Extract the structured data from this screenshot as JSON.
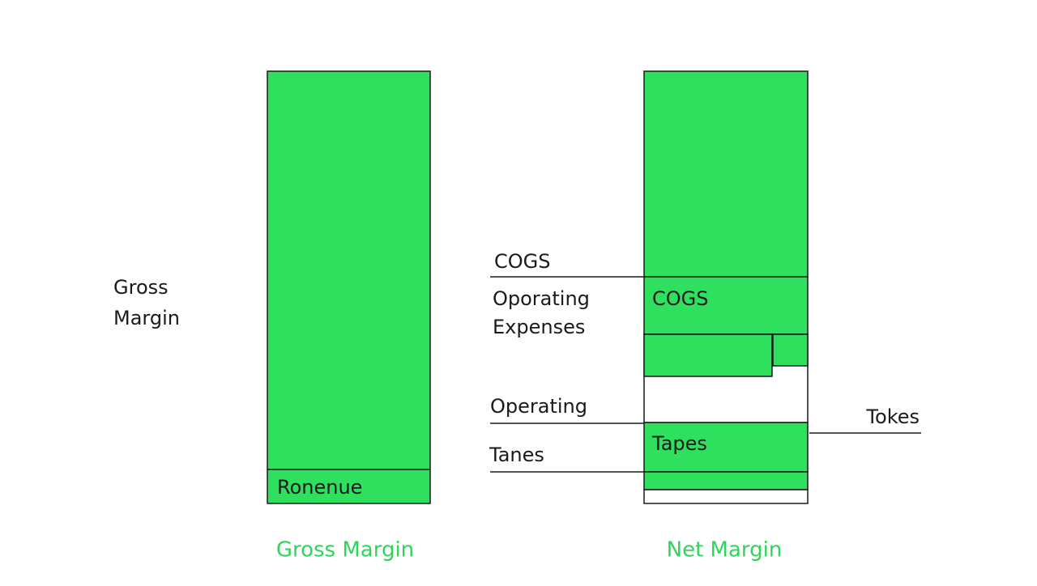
{
  "left_label": {
    "line1": "Gross",
    "line2": "Margin"
  },
  "gross_bar": {
    "label": "Ronenue",
    "caption": "Gross Margin"
  },
  "net_bar": {
    "inner_labels": [
      "COGS",
      "Tapes"
    ],
    "caption": "Net Margin"
  },
  "callouts": {
    "cogs": "COGS",
    "operating_expenses": [
      "Oporating",
      "Expenses"
    ],
    "operating": "Operating",
    "tanes": "Tanes",
    "tokes": "Tokes"
  }
}
